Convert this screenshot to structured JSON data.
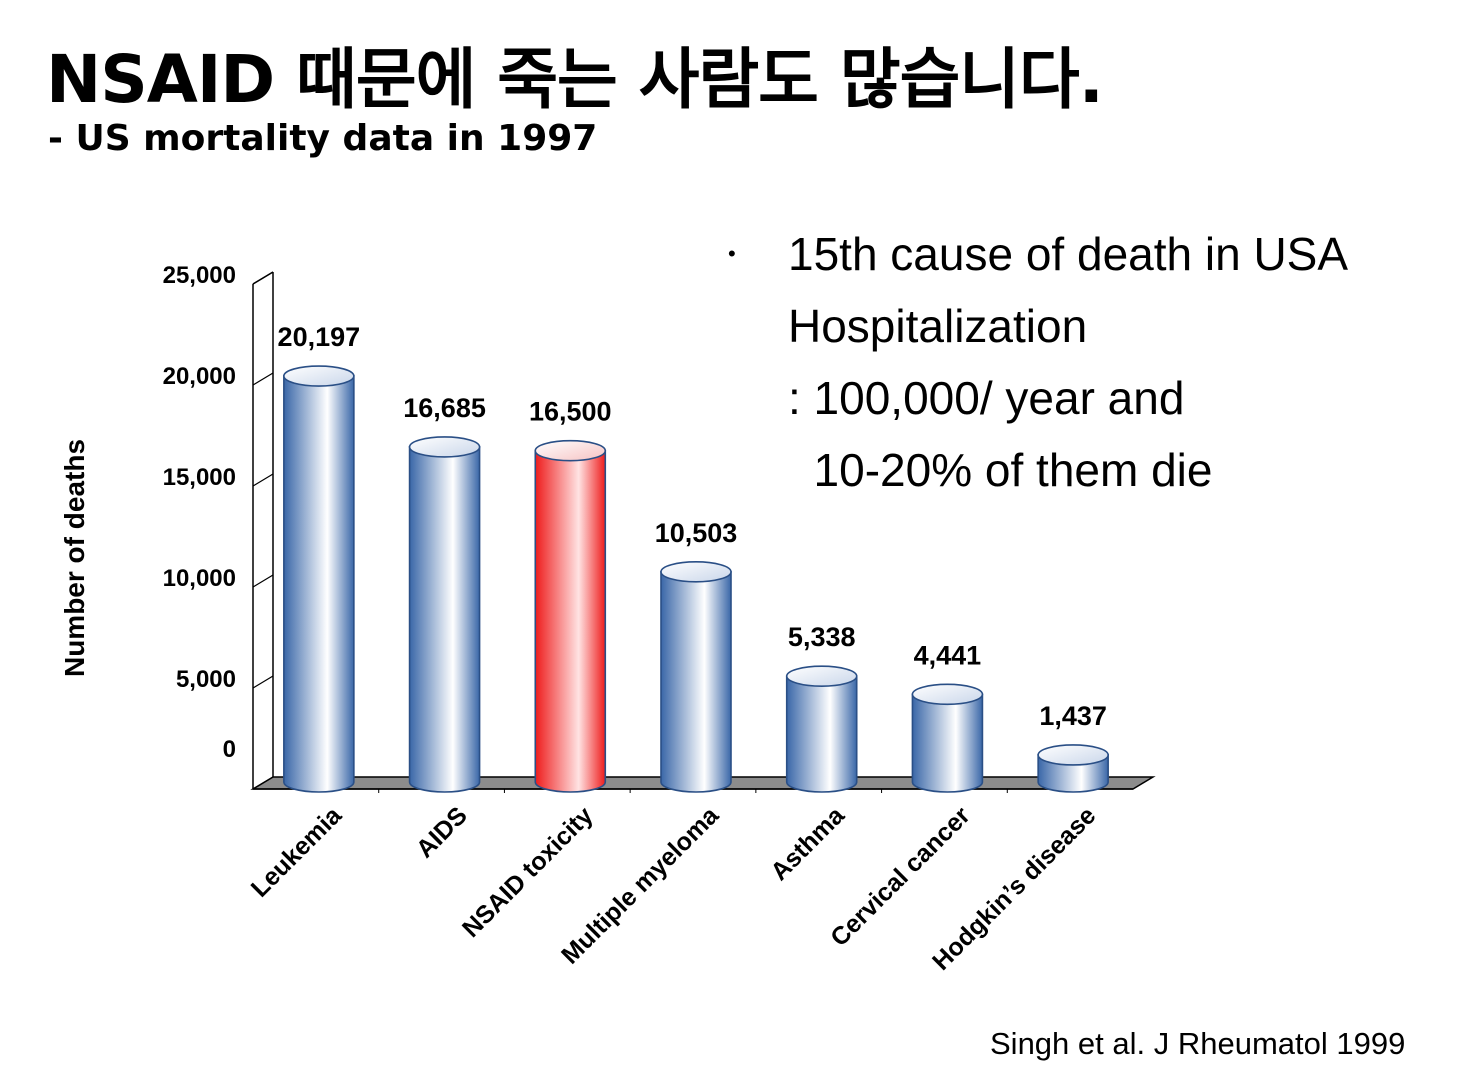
{
  "slide": {
    "title": "NSAID 때문에 죽는 사람도 많습니다.",
    "subtitle": "- US mortality data in 1997",
    "bullet_marker": "•",
    "bullet_lines": [
      "15th cause of death in USA",
      "Hospitalization",
      ": 100,000/ year and",
      "  10-20% of them die"
    ],
    "citation": "Singh et al. J Rheumatol 1999"
  },
  "chart_data": {
    "type": "bar",
    "style": "3d-cylinder",
    "categories": [
      "Leukemia",
      "AIDS",
      "NSAID toxicity",
      "Multiple myeloma",
      "Asthma",
      "Cervical cancer",
      "Hodgkin’s disease"
    ],
    "values": [
      20197,
      16685,
      16500,
      10503,
      5338,
      4441,
      1437
    ],
    "value_labels": [
      "20,197",
      "16,685",
      "16,500",
      "10,503",
      "5,338",
      "4,441",
      "1,437"
    ],
    "highlight_index": 2,
    "ylabel": "Number of deaths",
    "xlabel": "",
    "ylim": [
      0,
      25000
    ],
    "yticks": [
      0,
      5000,
      10000,
      15000,
      20000,
      25000
    ],
    "ytick_labels": [
      "0",
      "5,000",
      "10,000",
      "15,000",
      "20,000",
      "25,000"
    ],
    "grid": false,
    "legend": "none",
    "colors": {
      "bar_edge": "#2a4f86",
      "bar_dark": "#3a67a8",
      "bar_light": "#ffffff",
      "highlight_dark": "#ee1c1c",
      "highlight_light": "#ffe3e3",
      "floor": "#8c8c8c"
    }
  }
}
